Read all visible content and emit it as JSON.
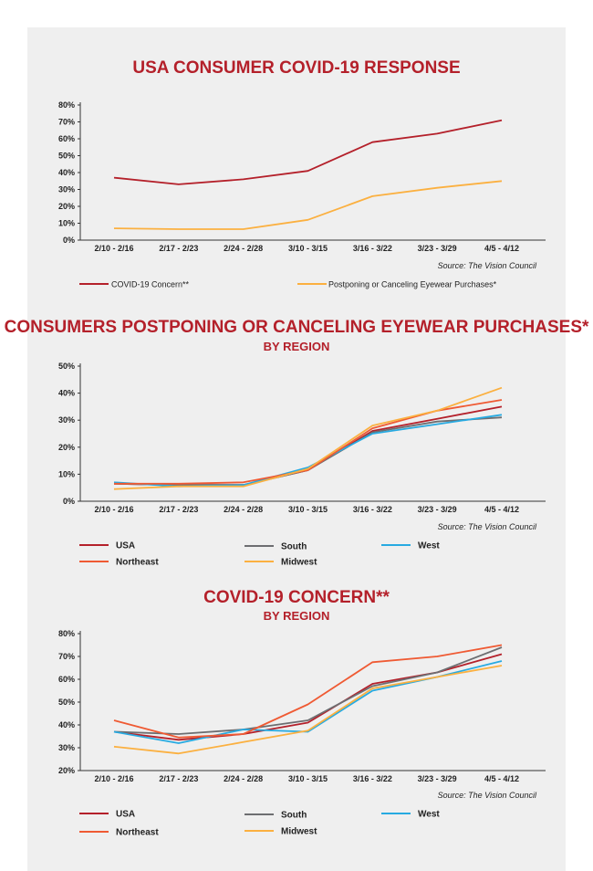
{
  "source": "Source: The Vision Council",
  "colors": {
    "panel": "#efefef",
    "title": "#b4202a",
    "usa": "#b4202a",
    "south": "#6d6e71",
    "west": "#27aae1",
    "northeast": "#ef5a33",
    "midwest": "#fbb040",
    "concern": "#b4202a",
    "postponing": "#fbb040"
  },
  "chart_data": [
    {
      "type": "line",
      "title": "USA CONSUMER COVID-19 RESPONSE",
      "subtitle": "",
      "categories": [
        "2/10 - 2/16",
        "2/17 - 2/23",
        "2/24 - 2/28",
        "3/10 - 3/15",
        "3/16 - 3/22",
        "3/23 - 3/29",
        "4/5 - 4/12"
      ],
      "y_ticks": [
        "0%",
        "10%",
        "20%",
        "30%",
        "40%",
        "50%",
        "60%",
        "70%",
        "80%"
      ],
      "ylim": [
        0,
        80
      ],
      "grid": false,
      "legend": "bottom",
      "series": [
        {
          "name": "COVID-19 Concern**",
          "color_key": "concern",
          "values": [
            37,
            33,
            36,
            41,
            58,
            63,
            71
          ]
        },
        {
          "name": "Postponing or Canceling Eyewear Purchases*",
          "color_key": "postponing",
          "values": [
            7,
            6.5,
            6.5,
            12,
            26,
            31,
            35
          ]
        }
      ]
    },
    {
      "type": "line",
      "title": "CONSUMERS POSTPONING OR CANCELING EYEWEAR PURCHASES*",
      "subtitle": "BY REGION",
      "categories": [
        "2/10 - 2/16",
        "2/17 - 2/23",
        "2/24 - 2/28",
        "3/10 - 3/15",
        "3/16 - 3/22",
        "3/23 - 3/29",
        "4/5 - 4/12"
      ],
      "y_ticks": [
        "0%",
        "10%",
        "20%",
        "30%",
        "40%",
        "50%"
      ],
      "ylim": [
        0,
        50
      ],
      "grid": false,
      "legend": "bottom",
      "series": [
        {
          "name": "USA",
          "color_key": "usa",
          "values": [
            6.5,
            6,
            6,
            11.5,
            26,
            30.5,
            35
          ]
        },
        {
          "name": "South",
          "color_key": "south",
          "values": [
            6.5,
            6,
            6,
            11.5,
            25.5,
            29.5,
            31
          ]
        },
        {
          "name": "West",
          "color_key": "west",
          "values": [
            7,
            5.5,
            6,
            12.5,
            25,
            28.5,
            32
          ]
        },
        {
          "name": "Northeast",
          "color_key": "northeast",
          "values": [
            6.5,
            6.5,
            7,
            11.5,
            27,
            33.5,
            37.5
          ]
        },
        {
          "name": "Midwest",
          "color_key": "midwest",
          "values": [
            4.5,
            5.5,
            5.5,
            12,
            28,
            33.5,
            42
          ]
        }
      ]
    },
    {
      "type": "line",
      "title": "COVID-19 CONCERN**",
      "subtitle": "BY REGION",
      "categories": [
        "2/10 - 2/16",
        "2/17 - 2/23",
        "2/24 - 2/28",
        "3/10 - 3/15",
        "3/16 - 3/22",
        "3/23 - 3/29",
        "4/5 - 4/12"
      ],
      "y_ticks": [
        "20%",
        "30%",
        "40%",
        "50%",
        "60%",
        "70%",
        "80%"
      ],
      "ylim": [
        20,
        80
      ],
      "grid": false,
      "legend": "bottom",
      "series": [
        {
          "name": "USA",
          "color_key": "usa",
          "values": [
            37,
            33.5,
            36,
            41,
            58,
            63,
            71
          ]
        },
        {
          "name": "South",
          "color_key": "south",
          "values": [
            37,
            36,
            38,
            42,
            57,
            63,
            74
          ]
        },
        {
          "name": "West",
          "color_key": "west",
          "values": [
            37,
            32,
            38,
            37,
            55,
            61,
            68
          ]
        },
        {
          "name": "Northeast",
          "color_key": "northeast",
          "values": [
            42,
            34.5,
            36,
            49,
            67.5,
            70,
            75
          ]
        },
        {
          "name": "Midwest",
          "color_key": "midwest",
          "values": [
            30.5,
            27.5,
            32.5,
            37.5,
            56,
            61,
            66
          ]
        }
      ]
    }
  ]
}
